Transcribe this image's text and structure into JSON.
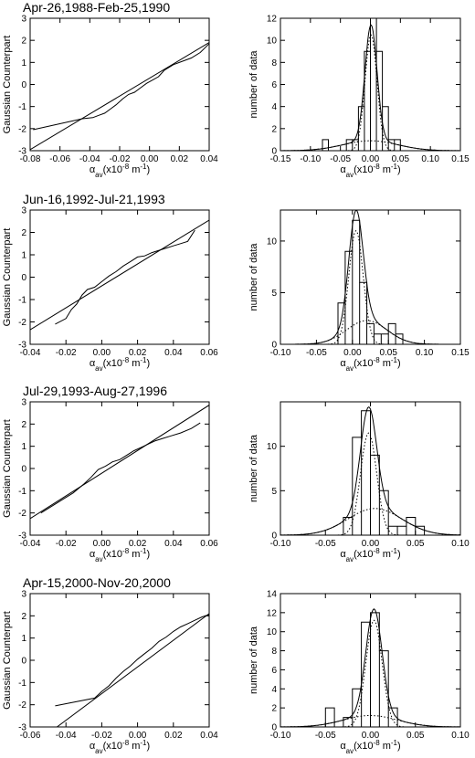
{
  "figure_labels": {
    "qq_ylabel": "Gaussian Counterpart",
    "hist_ylabel": "number of data",
    "xlabel_main": "α",
    "xlabel_sub": "av",
    "xlabel_unit": "(x10",
    "xlabel_exp": "-8",
    "xlabel_tail": " m",
    "xlabel_exp2": "-1",
    "xlabel_close": ")"
  },
  "chart_data": [
    {
      "type": "line",
      "title": "Apr-26,1988-Feb-25,1990",
      "xlim": [
        -0.08,
        0.04
      ],
      "ylim": [
        -3,
        3
      ],
      "xticks": [
        "-0.08",
        "-0.06",
        "-0.04",
        "-0.02",
        "0.00",
        "0.02",
        "0.04"
      ],
      "yticks": [
        "-3",
        "-2",
        "-1",
        "0",
        "1",
        "2",
        "3"
      ],
      "series": [
        {
          "kind": "reference",
          "x": [
            -0.08,
            0.04
          ],
          "y": [
            -2.95,
            1.9
          ]
        },
        {
          "kind": "data",
          "x": [
            -0.078,
            -0.045,
            -0.038,
            -0.034,
            -0.03,
            -0.026,
            -0.022,
            -0.018,
            -0.014,
            -0.01,
            -0.006,
            -0.002,
            0.002,
            0.006,
            0.01,
            0.016,
            0.022,
            0.028,
            0.034,
            0.04
          ],
          "y": [
            -2.05,
            -1.55,
            -1.5,
            -1.4,
            -1.3,
            -1.1,
            -0.9,
            -0.65,
            -0.45,
            -0.35,
            -0.15,
            0.05,
            0.2,
            0.35,
            0.65,
            0.9,
            1.05,
            1.2,
            1.45,
            1.85
          ]
        }
      ]
    },
    {
      "type": "bar",
      "title": "",
      "xlim": [
        -0.15,
        0.15
      ],
      "ylim": [
        0,
        12
      ],
      "xticks": [
        "-0.15",
        "-0.10",
        "-0.05",
        "0.00",
        "0.05",
        "0.10",
        "0.15"
      ],
      "yticks": [
        "0",
        "2",
        "4",
        "6",
        "8",
        "10",
        "12"
      ],
      "bin_edges": [
        -0.09,
        -0.08,
        -0.07,
        -0.06,
        -0.05,
        -0.04,
        -0.03,
        -0.02,
        -0.01,
        0.0,
        0.01,
        0.02,
        0.03,
        0.04,
        0.05,
        0.06
      ],
      "counts": [
        0,
        1,
        0,
        0,
        0,
        1,
        1,
        4,
        9,
        12,
        9,
        4,
        1,
        1,
        0
      ],
      "fit": {
        "total": {
          "amp": 11.4,
          "mu": 0.001,
          "sigma": 0.011,
          "tail_amp": 0.9,
          "tail_sigma": 0.045
        },
        "core": {
          "amp": 10.5,
          "mu": 0.001,
          "sigma": 0.01
        },
        "broad": {
          "amp": 0.9,
          "mu": 0.0,
          "sigma": 0.045
        }
      }
    },
    {
      "type": "line",
      "title": "Jun-16,1992-Jul-21,1993",
      "xlim": [
        -0.04,
        0.06
      ],
      "ylim": [
        -3,
        3
      ],
      "xticks": [
        "-0.04",
        "-0.02",
        "0.00",
        "0.02",
        "0.04",
        "0.06"
      ],
      "yticks": [
        "-3",
        "-2",
        "-1",
        "0",
        "1",
        "2",
        "3"
      ],
      "series": [
        {
          "kind": "reference",
          "x": [
            -0.04,
            0.06
          ],
          "y": [
            -2.35,
            2.55
          ]
        },
        {
          "kind": "data",
          "x": [
            -0.026,
            -0.02,
            -0.017,
            -0.014,
            -0.011,
            -0.008,
            -0.004,
            0.0,
            0.004,
            0.008,
            0.012,
            0.016,
            0.02,
            0.024,
            0.028,
            0.032,
            0.036,
            0.04,
            0.044,
            0.048,
            0.052
          ],
          "y": [
            -2.1,
            -1.85,
            -1.45,
            -1.2,
            -0.8,
            -0.55,
            -0.45,
            -0.2,
            0.05,
            0.25,
            0.5,
            0.7,
            0.9,
            0.95,
            1.1,
            1.2,
            1.3,
            1.4,
            1.5,
            1.6,
            2.1
          ]
        }
      ]
    },
    {
      "type": "bar",
      "title": "",
      "xlim": [
        -0.1,
        0.15
      ],
      "ylim": [
        0,
        13
      ],
      "xticks": [
        "-0.10",
        "-0.05",
        "0.00",
        "0.05",
        "0.10",
        "0.15"
      ],
      "yticks": [
        "0",
        "5",
        "10"
      ],
      "bin_edges": [
        -0.02,
        -0.01,
        0.0,
        0.01,
        0.02,
        0.03,
        0.04,
        0.05,
        0.06,
        0.07,
        0.08
      ],
      "counts": [
        4,
        9,
        12,
        6,
        2,
        1,
        1,
        2,
        1,
        0
      ],
      "fit": {
        "total": {
          "amp": 12.2,
          "mu": 0.006,
          "sigma": 0.011,
          "tail_amp": 2.3,
          "tail_sigma": 0.03
        },
        "core": {
          "amp": 11.0,
          "mu": 0.005,
          "sigma": 0.01
        },
        "broad": {
          "amp": 2.3,
          "mu": 0.02,
          "sigma": 0.028
        }
      }
    },
    {
      "type": "line",
      "title": "Jul-29,1993-Aug-27,1996",
      "xlim": [
        -0.04,
        0.06
      ],
      "ylim": [
        -3,
        3
      ],
      "xticks": [
        "-0.04",
        "-0.02",
        "0.00",
        "0.02",
        "0.04",
        "0.06"
      ],
      "yticks": [
        "-3",
        "-2",
        "-1",
        "0",
        "1",
        "2",
        "3"
      ],
      "series": [
        {
          "kind": "reference",
          "x": [
            -0.04,
            0.06
          ],
          "y": [
            -2.25,
            2.85
          ]
        },
        {
          "kind": "data",
          "x": [
            -0.034,
            -0.028,
            -0.022,
            -0.016,
            -0.01,
            -0.006,
            -0.002,
            0.002,
            0.006,
            0.01,
            0.014,
            0.018,
            0.022,
            0.026,
            0.03,
            0.034,
            0.038,
            0.044,
            0.05,
            0.055
          ],
          "y": [
            -2.0,
            -1.7,
            -1.4,
            -1.1,
            -0.7,
            -0.4,
            -0.05,
            0.1,
            0.3,
            0.4,
            0.6,
            0.8,
            0.95,
            1.1,
            1.25,
            1.35,
            1.45,
            1.6,
            1.8,
            2.05
          ]
        }
      ]
    },
    {
      "type": "bar",
      "title": "",
      "xlim": [
        -0.1,
        0.1
      ],
      "ylim": [
        0,
        15
      ],
      "xticks": [
        "-0.10",
        "-0.05",
        "0.00",
        "0.05",
        "0.10"
      ],
      "yticks": [
        "0",
        "5",
        "10"
      ],
      "bin_edges": [
        -0.03,
        -0.02,
        -0.01,
        0.0,
        0.01,
        0.02,
        0.03,
        0.04,
        0.05,
        0.06
      ],
      "counts": [
        2,
        11,
        14,
        9,
        5,
        1,
        1,
        2,
        1
      ],
      "fit": {
        "total": {
          "amp": 13.0,
          "mu": -0.002,
          "sigma": 0.01,
          "tail_amp": 3.2,
          "tail_sigma": 0.03
        },
        "core": {
          "amp": 11.5,
          "mu": -0.002,
          "sigma": 0.009
        },
        "broad": {
          "amp": 3.0,
          "mu": 0.005,
          "sigma": 0.03
        }
      }
    },
    {
      "type": "line",
      "title": "Apr-15,2000-Nov-20,2000",
      "xlim": [
        -0.06,
        0.04
      ],
      "ylim": [
        -3,
        3
      ],
      "xticks": [
        "-0.06",
        "-0.04",
        "-0.02",
        "0.00",
        "0.02",
        "0.04"
      ],
      "yticks": [
        "-3",
        "-2",
        "-1",
        "0",
        "1",
        "2",
        "3"
      ],
      "series": [
        {
          "kind": "reference",
          "x": [
            -0.045,
            0.04
          ],
          "y": [
            -3.0,
            2.1
          ]
        },
        {
          "kind": "data",
          "x": [
            -0.046,
            -0.024,
            -0.02,
            -0.016,
            -0.012,
            -0.008,
            -0.004,
            0.0,
            0.004,
            0.008,
            0.012,
            0.016,
            0.02,
            0.024,
            0.028,
            0.032,
            0.036,
            0.04
          ],
          "y": [
            -2.05,
            -1.7,
            -1.4,
            -1.15,
            -0.8,
            -0.5,
            -0.25,
            0.05,
            0.3,
            0.55,
            0.85,
            1.05,
            1.3,
            1.5,
            1.65,
            1.8,
            1.95,
            2.05
          ]
        }
      ]
    },
    {
      "type": "bar",
      "title": "",
      "xlim": [
        -0.1,
        0.1
      ],
      "ylim": [
        0,
        14
      ],
      "xticks": [
        "-0.10",
        "-0.05",
        "0.00",
        "0.05",
        "0.10"
      ],
      "yticks": [
        "0",
        "2",
        "4",
        "6",
        "8",
        "10",
        "12",
        "14"
      ],
      "bin_edges": [
        -0.05,
        -0.04,
        -0.03,
        -0.02,
        -0.01,
        0.0,
        0.01,
        0.02,
        0.03,
        0.04
      ],
      "counts": [
        2,
        0,
        1,
        4,
        11,
        12,
        8,
        2,
        0
      ],
      "fit": {
        "total": {
          "amp": 12.3,
          "mu": 0.004,
          "sigma": 0.01,
          "tail_amp": 1.2,
          "tail_sigma": 0.03
        },
        "core": {
          "amp": 11.2,
          "mu": 0.004,
          "sigma": 0.009
        },
        "broad": {
          "amp": 1.2,
          "mu": 0.0,
          "sigma": 0.03
        }
      }
    }
  ]
}
